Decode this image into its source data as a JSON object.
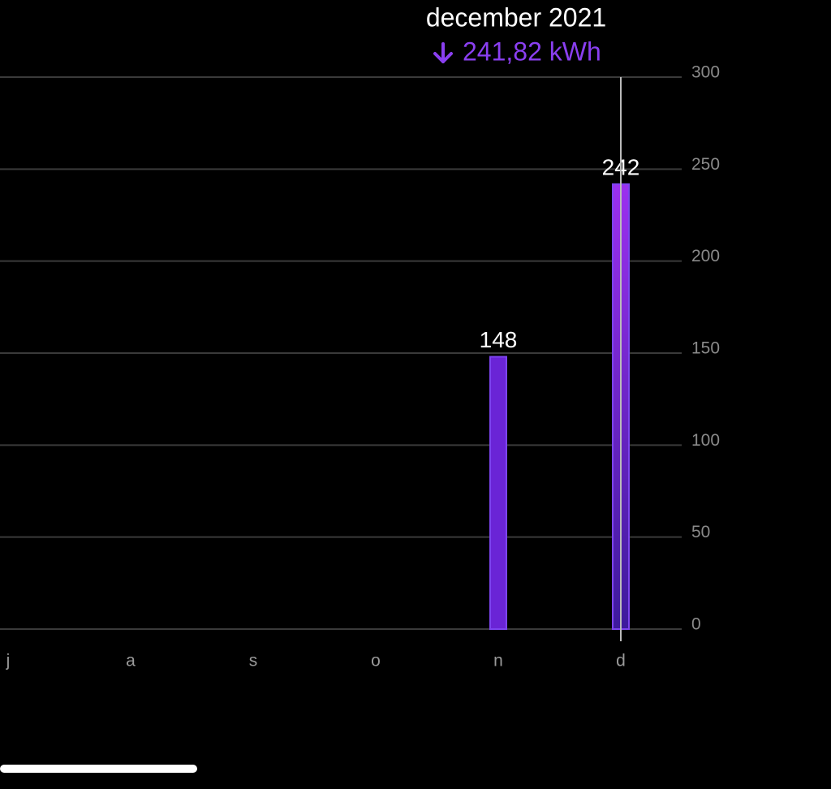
{
  "chart_data": {
    "type": "bar",
    "tooltip": {
      "title": "december 2021",
      "value": "241,82 kWh"
    },
    "categories": [
      "j",
      "a",
      "s",
      "o",
      "n",
      "d"
    ],
    "values": [
      null,
      null,
      null,
      null,
      148,
      241.82
    ],
    "value_labels": [
      null,
      null,
      null,
      null,
      "148",
      "242"
    ],
    "color": "#6a24d6",
    "ylim": [
      0,
      300
    ],
    "yticks": [
      0,
      50,
      100,
      150,
      200,
      250,
      300
    ],
    "grid": true
  }
}
